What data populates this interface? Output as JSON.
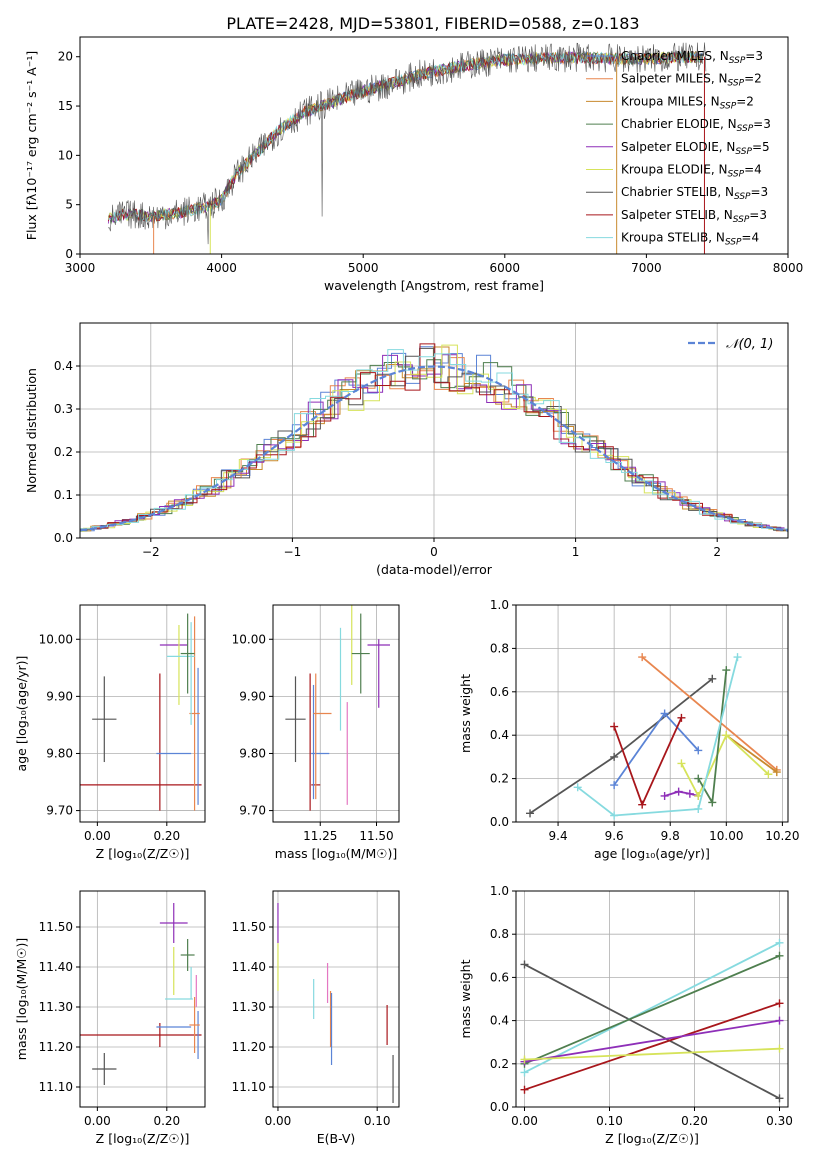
{
  "figure_title": "PLATE=2428, MJD=53801, FIBERID=0588, z=0.183",
  "colors": {
    "Chabrier MILES": "#5b84d6",
    "Salpeter MILES": "#e8864f",
    "Kroupa MILES": "#c88a2e",
    "Chabrier ELODIE": "#4f7f4f",
    "Salpeter ELODIE": "#8e2fb8",
    "Kroupa ELODIE": "#d6e35a",
    "Chabrier STELIB": "#555555",
    "Salpeter STELIB": "#a8161b",
    "Kroupa STELIB": "#86dadf",
    "pink": "#e477c2",
    "gaussian": "#5b84d6"
  },
  "chart_data": [
    {
      "id": "spectrum",
      "type": "line",
      "xlabel": "wavelength [Angstrom, rest frame]",
      "ylabel": "Flux [fλ10⁻¹⁷ erg cm⁻² s⁻¹ A⁻¹]",
      "xlim": [
        3000,
        8000
      ],
      "ylim": [
        0,
        22
      ],
      "xticks": [
        3000,
        4000,
        5000,
        6000,
        7000,
        8000
      ],
      "yticks": [
        0,
        5,
        10,
        15,
        20
      ],
      "legend_position": "top-right",
      "legend": [
        {
          "label": "Chabrier MILES, N",
          "sub": "SSP",
          "tail": "=3"
        },
        {
          "label": "Salpeter MILES, N",
          "sub": "SSP",
          "tail": "=2"
        },
        {
          "label": "Kroupa MILES, N",
          "sub": "SSP",
          "tail": "=2"
        },
        {
          "label": "Chabrier ELODIE, N",
          "sub": "SSP",
          "tail": "=3"
        },
        {
          "label": "Salpeter ELODIE, N",
          "sub": "SSP",
          "tail": "=5"
        },
        {
          "label": "Kroupa ELODIE, N",
          "sub": "SSP",
          "tail": "=4"
        },
        {
          "label": "Chabrier STELIB, N",
          "sub": "SSP",
          "tail": "=3"
        },
        {
          "label": "Salpeter STELIB, N",
          "sub": "SSP",
          "tail": "=3"
        },
        {
          "label": "Kroupa STELIB, N",
          "sub": "SSP",
          "tail": "=4"
        }
      ],
      "continuum": {
        "x": [
          3200,
          3300,
          3400,
          3500,
          3600,
          3700,
          3800,
          3900,
          4000,
          4100,
          4200,
          4300,
          4400,
          4500,
          4600,
          4700,
          4800,
          4900,
          5000,
          5200,
          5400,
          5600,
          5800,
          6000,
          6200,
          6400,
          6600,
          6800,
          7000,
          7200,
          7400
        ],
        "y": [
          3.5,
          4.0,
          4.0,
          3.8,
          4.0,
          4.2,
          4.5,
          4.8,
          5.5,
          8.0,
          9.5,
          11.0,
          12.5,
          13.5,
          14.5,
          15.0,
          15.5,
          16.0,
          16.5,
          17.3,
          18.2,
          18.8,
          19.3,
          19.7,
          19.8,
          19.9,
          19.9,
          19.8,
          19.8,
          19.9,
          20.0
        ]
      }
    },
    {
      "id": "residuals",
      "type": "area",
      "xlabel": "(data-model)/error",
      "ylabel": "Normed distribution",
      "xlim": [
        -2.5,
        2.5
      ],
      "ylim": [
        0,
        0.5
      ],
      "xticks": [
        -2,
        -1,
        0,
        1,
        2
      ],
      "yticks": [
        0.0,
        0.1,
        0.2,
        0.3,
        0.4
      ],
      "grid": true,
      "legend_position": "top-right",
      "legend_label": "𝒩(0, 1)",
      "gaussian": {
        "mean": 0,
        "sigma": 1
      }
    },
    {
      "id": "age_vs_Z",
      "type": "scatter",
      "xlabel": "Z [log₁₀(Z/Z☉)]",
      "ylabel": "age  [log₁₀(age/yr)]",
      "xlim": [
        -0.05,
        0.31
      ],
      "ylim": [
        9.68,
        10.06
      ],
      "xticks": [
        0.0,
        0.2
      ],
      "yticks": [
        9.7,
        9.8,
        9.9,
        10.0
      ],
      "grid": true,
      "points": [
        {
          "c": "Chabrier STELIB",
          "x": 0.02,
          "xe": 0.035,
          "y": 9.86,
          "ye": 0.075
        },
        {
          "c": "Salpeter STELIB",
          "x": 0.12,
          "xe": 0.18,
          "y": 9.745,
          "ye": 0.0
        },
        {
          "c": "Salpeter STELIB",
          "x": 0.18,
          "xe": 0.0,
          "y": 9.82,
          "ye": 0.12
        },
        {
          "c": "Chabrier MILES",
          "x": 0.22,
          "xe": 0.05,
          "y": 9.8,
          "ye": 0.0
        },
        {
          "c": "Chabrier MILES",
          "x": 0.29,
          "xe": 0.0,
          "y": 9.83,
          "ye": 0.12
        },
        {
          "c": "Salpeter MILES",
          "x": 0.28,
          "xe": 0.015,
          "y": 9.87,
          "ye": 0.17
        },
        {
          "c": "Salpeter ELODIE",
          "x": 0.22,
          "xe": 0.04,
          "y": 9.99,
          "ye": 0.0
        },
        {
          "c": "Kroupa ELODIE",
          "x": 0.235,
          "xe": 0.0,
          "y": 9.955,
          "ye": 0.07
        },
        {
          "c": "Kroupa STELIB",
          "x": 0.24,
          "xe": 0.04,
          "y": 9.97,
          "ye": 0.0
        },
        {
          "c": "Kroupa STELIB",
          "x": 0.27,
          "xe": 0.0,
          "y": 9.94,
          "ye": 0.09
        },
        {
          "c": "Chabrier ELODIE",
          "x": 0.26,
          "xe": 0.02,
          "y": 9.975,
          "ye": 0.07
        }
      ]
    },
    {
      "id": "age_vs_mass",
      "type": "scatter",
      "xlabel": "mass [log₁₀(M/M☉)]",
      "ylabel": "",
      "xlim": [
        11.04,
        11.6
      ],
      "ylim": [
        9.68,
        10.06
      ],
      "xticks": [
        11.25,
        11.5
      ],
      "yticks": [
        9.7,
        9.8,
        9.9,
        10.0
      ],
      "grid": true,
      "points": [
        {
          "c": "Chabrier STELIB",
          "x": 11.14,
          "xe": 0.045,
          "y": 9.86,
          "ye": 0.075
        },
        {
          "c": "Salpeter STELIB",
          "x": 11.23,
          "xe": 0.02,
          "y": 9.745,
          "ye": 0.0
        },
        {
          "c": "Salpeter STELIB",
          "x": 11.205,
          "xe": 0.0,
          "y": 9.82,
          "ye": 0.12
        },
        {
          "c": "Chabrier MILES",
          "x": 11.25,
          "xe": 0.04,
          "y": 9.8,
          "ye": 0.0
        },
        {
          "c": "Chabrier MILES",
          "x": 11.22,
          "xe": 0.0,
          "y": 9.82,
          "ye": 0.1
        },
        {
          "c": "Salpeter MILES",
          "x": 11.26,
          "xe": 0.04,
          "y": 9.87,
          "ye": 0.0
        },
        {
          "c": "Salpeter MILES",
          "x": 11.23,
          "xe": 0.0,
          "y": 9.83,
          "ye": 0.11
        },
        {
          "c": "Kroupa STELIB",
          "x": 11.34,
          "xe": 0.0,
          "y": 9.93,
          "ye": 0.09
        },
        {
          "c": "pink",
          "x": 11.37,
          "xe": 0.0,
          "y": 9.8,
          "ye": 0.09
        },
        {
          "c": "Kroupa ELODIE",
          "x": 11.39,
          "xe": 0.0,
          "y": 9.99,
          "ye": 0.07
        },
        {
          "c": "Chabrier ELODIE",
          "x": 11.43,
          "xe": 0.04,
          "y": 9.975,
          "ye": 0.07
        },
        {
          "c": "Salpeter ELODIE",
          "x": 11.51,
          "xe": 0.05,
          "y": 9.99,
          "ye": 0.0
        },
        {
          "c": "Salpeter ELODIE",
          "x": 11.51,
          "xe": 0.0,
          "y": 9.94,
          "ye": 0.06
        }
      ]
    },
    {
      "id": "mass_weight_vs_age",
      "type": "line",
      "xlabel": "age  [log₁₀(age/yr)]",
      "ylabel": "mass weight",
      "xlim": [
        9.25,
        10.22
      ],
      "ylim": [
        0.0,
        1.0
      ],
      "xticks": [
        9.4,
        9.6,
        9.8,
        10.0,
        10.2
      ],
      "yticks": [
        0.0,
        0.2,
        0.4,
        0.6,
        0.8,
        1.0
      ],
      "grid": true,
      "series": [
        {
          "c": "Chabrier STELIB",
          "x": [
            9.3,
            9.6,
            9.95
          ],
          "y": [
            0.04,
            0.3,
            0.66
          ]
        },
        {
          "c": "Salpeter MILES",
          "x": [
            9.7,
            10.18
          ],
          "y": [
            0.76,
            0.24
          ]
        },
        {
          "c": "Kroupa MILES",
          "x": [
            10.0,
            10.18
          ],
          "y": [
            0.4,
            0.23
          ]
        },
        {
          "c": "Chabrier MILES",
          "x": [
            9.6,
            9.78,
            9.9
          ],
          "y": [
            0.17,
            0.5,
            0.33
          ]
        },
        {
          "c": "Salpeter STELIB",
          "x": [
            9.6,
            9.7,
            9.84
          ],
          "y": [
            0.44,
            0.08,
            0.48
          ]
        },
        {
          "c": "Salpeter ELODIE",
          "x": [
            9.78,
            9.83,
            9.87,
            9.9
          ],
          "y": [
            0.12,
            0.14,
            0.13,
            0.12
          ]
        },
        {
          "c": "Kroupa ELODIE",
          "x": [
            9.84,
            9.9,
            10.0,
            10.15
          ],
          "y": [
            0.27,
            0.12,
            0.4,
            0.22
          ]
        },
        {
          "c": "Chabrier ELODIE",
          "x": [
            9.9,
            9.95,
            10.0
          ],
          "y": [
            0.2,
            0.09,
            0.7
          ]
        },
        {
          "c": "Kroupa STELIB",
          "x": [
            9.47,
            9.6,
            9.9,
            10.04
          ],
          "y": [
            0.16,
            0.03,
            0.06,
            0.76
          ]
        }
      ]
    },
    {
      "id": "mass_vs_Z",
      "type": "scatter",
      "xlabel": "Z [log₁₀(Z/Z☉)]",
      "ylabel": "mass [log₁₀(M/M☉)]",
      "xlim": [
        -0.05,
        0.31
      ],
      "ylim": [
        11.05,
        11.59
      ],
      "xticks": [
        0.0,
        0.2
      ],
      "yticks": [
        11.1,
        11.2,
        11.3,
        11.4,
        11.5
      ],
      "grid": true,
      "points": [
        {
          "c": "Chabrier STELIB",
          "x": 0.02,
          "xe": 0.035,
          "y": 11.145,
          "ye": 0.04
        },
        {
          "c": "Salpeter STELIB",
          "x": 0.12,
          "xe": 0.18,
          "y": 11.23,
          "ye": 0.0
        },
        {
          "c": "Salpeter STELIB",
          "x": 0.18,
          "xe": 0.0,
          "y": 11.23,
          "ye": 0.03
        },
        {
          "c": "Chabrier MILES",
          "x": 0.22,
          "xe": 0.05,
          "y": 11.25,
          "ye": 0.0
        },
        {
          "c": "Chabrier MILES",
          "x": 0.29,
          "xe": 0.0,
          "y": 11.23,
          "ye": 0.06
        },
        {
          "c": "Salpeter MILES",
          "x": 0.28,
          "xe": 0.015,
          "y": 11.255,
          "ye": 0.07
        },
        {
          "c": "pink",
          "x": 0.285,
          "xe": 0.0,
          "y": 11.34,
          "ye": 0.04
        },
        {
          "c": "Kroupa STELIB",
          "x": 0.235,
          "xe": 0.04,
          "y": 11.32,
          "ye": 0.0
        },
        {
          "c": "Kroupa STELIB",
          "x": 0.27,
          "xe": 0.0,
          "y": 11.36,
          "ye": 0.04
        },
        {
          "c": "Kroupa ELODIE",
          "x": 0.22,
          "xe": 0.0,
          "y": 11.39,
          "ye": 0.06
        },
        {
          "c": "Chabrier ELODIE",
          "x": 0.26,
          "xe": 0.02,
          "y": 11.43,
          "ye": 0.04
        },
        {
          "c": "Salpeter ELODIE",
          "x": 0.22,
          "xe": 0.04,
          "y": 11.51,
          "ye": 0.05
        }
      ]
    },
    {
      "id": "mass_vs_EBV",
      "type": "scatter",
      "xlabel": "E(B-V)",
      "ylabel": "",
      "xlim": [
        -0.005,
        0.122
      ],
      "ylim": [
        11.05,
        11.59
      ],
      "xticks": [
        0.0,
        0.1
      ],
      "yticks": [
        11.1,
        11.2,
        11.3,
        11.4,
        11.5
      ],
      "grid": true,
      "points": [
        {
          "c": "Salpeter ELODIE",
          "x": 0.0,
          "xe": 0.0,
          "y": 11.51,
          "ye": 0.05
        },
        {
          "c": "Kroupa ELODIE",
          "x": 0.0,
          "xe": 0.0,
          "y": 11.4,
          "ye": 0.06
        },
        {
          "c": "Kroupa STELIB",
          "x": 0.036,
          "xe": 0.0,
          "y": 11.32,
          "ye": 0.05
        },
        {
          "c": "pink",
          "x": 0.05,
          "xe": 0.0,
          "y": 11.36,
          "ye": 0.05
        },
        {
          "c": "Salpeter MILES",
          "x": 0.053,
          "xe": 0.0,
          "y": 11.27,
          "ye": 0.07
        },
        {
          "c": "Chabrier MILES",
          "x": 0.054,
          "xe": 0.0,
          "y": 11.245,
          "ye": 0.09
        },
        {
          "c": "Salpeter STELIB",
          "x": 0.11,
          "xe": 0.0,
          "y": 11.255,
          "ye": 0.05
        },
        {
          "c": "Chabrier STELIB",
          "x": 0.116,
          "xe": 0.0,
          "y": 11.12,
          "ye": 0.06
        }
      ]
    },
    {
      "id": "mass_weight_vs_Z",
      "type": "line",
      "xlabel": "Z [log₁₀(Z/Z☉)]",
      "ylabel": "mass weight",
      "xlim": [
        -0.01,
        0.31
      ],
      "ylim": [
        0.0,
        1.0
      ],
      "xticks": [
        0.0,
        0.1,
        0.2,
        0.3
      ],
      "yticks": [
        0.0,
        0.2,
        0.4,
        0.6,
        0.8,
        1.0
      ],
      "grid": true,
      "series": [
        {
          "c": "Chabrier STELIB",
          "x": [
            0.0,
            0.3
          ],
          "y": [
            0.66,
            0.04
          ]
        },
        {
          "c": "Kroupa STELIB",
          "x": [
            0.0,
            0.3
          ],
          "y": [
            0.16,
            0.76
          ]
        },
        {
          "c": "Chabrier ELODIE",
          "x": [
            0.0,
            0.3
          ],
          "y": [
            0.2,
            0.7
          ]
        },
        {
          "c": "Salpeter STELIB",
          "x": [
            0.0,
            0.3
          ],
          "y": [
            0.08,
            0.48
          ]
        },
        {
          "c": "Salpeter ELODIE",
          "x": [
            0.0,
            0.3
          ],
          "y": [
            0.21,
            0.4
          ]
        },
        {
          "c": "Kroupa ELODIE",
          "x": [
            0.0,
            0.3
          ],
          "y": [
            0.22,
            0.27
          ]
        }
      ]
    }
  ]
}
